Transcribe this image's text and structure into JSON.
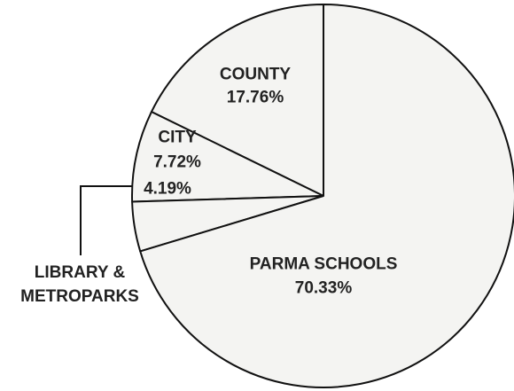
{
  "chart_data": {
    "type": "pie",
    "categories": [
      "COUNTY",
      "CITY",
      "LIBRARY & METROPARKS",
      "PARMA SCHOOLS"
    ],
    "values": [
      17.76,
      7.72,
      4.19,
      70.33
    ],
    "value_labels": [
      "17.76%",
      "7.72%",
      "4.19%",
      "70.33%"
    ],
    "start": "top",
    "direction": "counterclockwise"
  }
}
